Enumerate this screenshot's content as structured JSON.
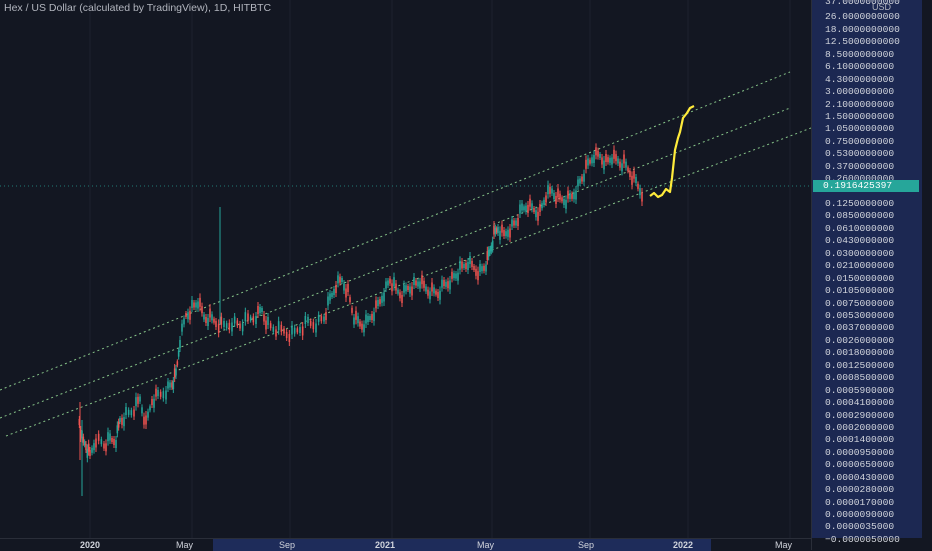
{
  "header": {
    "symbol_title": "Hex / US Dollar (calculated by TradingView), 1D, HITBTC"
  },
  "price_axis": {
    "currency": "USD",
    "labels": [
      "37.0000000000",
      "26.0000000000",
      "18.0000000000",
      "12.5000000000",
      "8.5000000000",
      "6.1000000000",
      "4.3000000000",
      "3.0000000000",
      "2.1000000000",
      "1.5000000000",
      "1.0500000000",
      "0.7500000000",
      "0.5300000000",
      "0.3700000000",
      "0.2600000000",
      "0.1250000000",
      "0.0850000000",
      "0.0610000000",
      "0.0430000000",
      "0.0300000000",
      "0.0210000000",
      "0.0150000000",
      "0.0105000000",
      "0.0075000000",
      "0.0053000000",
      "0.0037000000",
      "0.0026000000",
      "0.0018000000",
      "0.0012500000",
      "0.0008500000",
      "0.0005900000",
      "0.0004100000",
      "0.0002900000",
      "0.0002000000",
      "0.0001400000",
      "0.0000950000",
      "0.0000650000",
      "0.0000430000",
      "0.0000280000",
      "0.0000170000",
      "0.0000090000",
      "0.0000035000",
      "−0.0000050000"
    ],
    "current_price": "0.1916425397"
  },
  "time_axis": {
    "labels": [
      {
        "text": "2020",
        "bold": true
      },
      {
        "text": "May",
        "bold": false
      },
      {
        "text": "Sep",
        "bold": false
      },
      {
        "text": "2021",
        "bold": true
      },
      {
        "text": "May",
        "bold": false
      },
      {
        "text": "Sep",
        "bold": false
      },
      {
        "text": "2022",
        "bold": true
      },
      {
        "text": "May",
        "bold": false
      }
    ]
  },
  "colors": {
    "background": "#131722",
    "up": "#26a69a",
    "down": "#ef5350",
    "projection": "#ffeb3b",
    "channel": "#9be39b",
    "highlight": "#1e2c5a"
  }
}
